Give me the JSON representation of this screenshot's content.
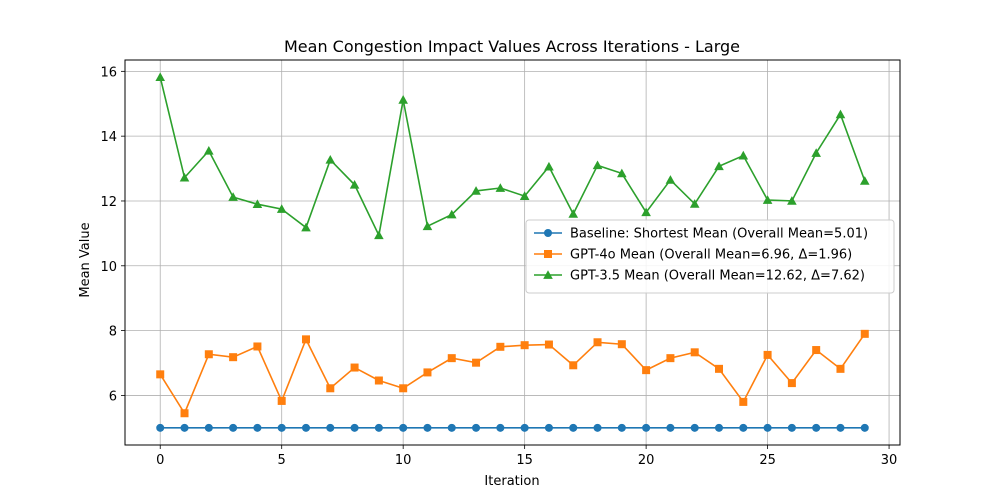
{
  "chart_data": {
    "type": "line",
    "title": "Mean Congestion Impact Values Across Iterations - Large",
    "xlabel": "Iteration",
    "ylabel": "Mean Value",
    "xlim": [
      -1.45,
      30.45
    ],
    "ylim": [
      4.47,
      16.35
    ],
    "xticks": [
      0,
      5,
      10,
      15,
      20,
      25,
      30
    ],
    "yticks": [
      6,
      8,
      10,
      12,
      14,
      16
    ],
    "grid": true,
    "legend_position": "center-right",
    "x": [
      0,
      1,
      2,
      3,
      4,
      5,
      6,
      7,
      8,
      9,
      10,
      11,
      12,
      13,
      14,
      15,
      16,
      17,
      18,
      19,
      20,
      21,
      22,
      23,
      24,
      25,
      26,
      27,
      28,
      29
    ],
    "series": [
      {
        "name": "Baseline: Shortest Mean (Overall Mean=5.01)",
        "color": "#1f77b4",
        "marker": "circle",
        "values": [
          5.0,
          5.0,
          5.0,
          5.0,
          5.0,
          5.0,
          5.0,
          5.0,
          5.0,
          5.0,
          5.0,
          5.0,
          5.0,
          5.0,
          5.0,
          5.0,
          5.0,
          5.0,
          5.0,
          5.0,
          5.0,
          5.0,
          5.0,
          5.0,
          5.0,
          5.0,
          5.0,
          5.0,
          5.0,
          5.0
        ]
      },
      {
        "name": "GPT-4o Mean (Overall Mean=6.96, Δ=1.96)",
        "color": "#ff7f0e",
        "marker": "square",
        "values": [
          6.65,
          5.45,
          7.27,
          7.18,
          7.51,
          5.83,
          7.73,
          6.22,
          6.86,
          6.46,
          6.22,
          6.71,
          7.15,
          7.01,
          7.5,
          7.55,
          7.57,
          6.93,
          7.64,
          7.58,
          6.78,
          7.15,
          7.33,
          6.82,
          5.8,
          7.25,
          6.38,
          7.4,
          6.82,
          7.9
        ]
      },
      {
        "name": "GPT-3.5 Mean (Overall Mean=12.62, Δ=7.62)",
        "color": "#2ca02c",
        "marker": "triangle",
        "values": [
          15.82,
          12.72,
          13.55,
          12.12,
          11.9,
          11.75,
          11.18,
          13.27,
          12.5,
          10.94,
          15.12,
          11.22,
          11.58,
          12.31,
          12.4,
          12.15,
          13.06,
          11.6,
          13.1,
          12.85,
          11.65,
          12.65,
          11.91,
          13.07,
          13.4,
          12.03,
          12.0,
          13.48,
          14.67,
          12.62
        ]
      }
    ]
  }
}
